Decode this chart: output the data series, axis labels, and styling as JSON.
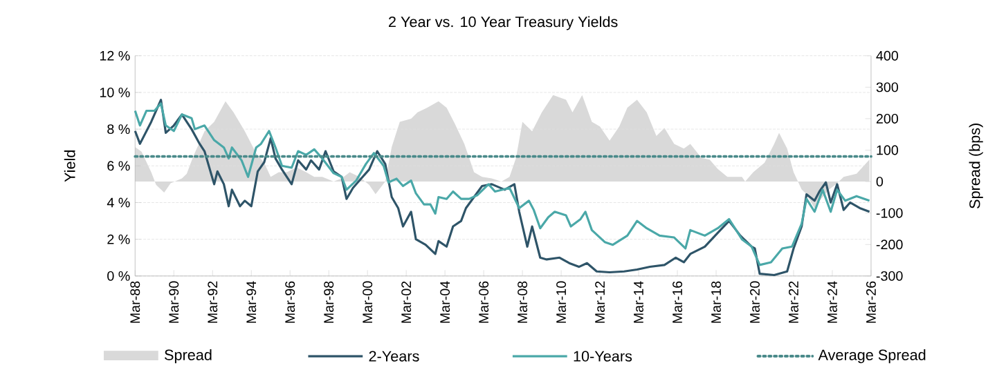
{
  "chart_data": {
    "type": "line",
    "title": "2 Year vs. 10 Year Treasury Yields",
    "ylabel": "Yield",
    "y2label": "Spread (bps)",
    "xlim": [
      "1988-03",
      "2026-03"
    ],
    "xticks": [
      {
        "value": "1988-03",
        "label": "Mar-88"
      },
      {
        "value": "1990-03",
        "label": "Mar-90"
      },
      {
        "value": "1992-03",
        "label": "Mar-92"
      },
      {
        "value": "1994-03",
        "label": "Mar-94"
      },
      {
        "value": "1996-03",
        "label": "Mar-96"
      },
      {
        "value": "1998-03",
        "label": "Mar-98"
      },
      {
        "value": "2000-03",
        "label": "Mar-00"
      },
      {
        "value": "2002-03",
        "label": "Mar-02"
      },
      {
        "value": "2004-03",
        "label": "Mar-04"
      },
      {
        "value": "2006-03",
        "label": "Mar-06"
      },
      {
        "value": "2008-03",
        "label": "Mar-08"
      },
      {
        "value": "2010-03",
        "label": "Mar-10"
      },
      {
        "value": "2012-03",
        "label": "Mar-12"
      },
      {
        "value": "2014-03",
        "label": "Mar-14"
      },
      {
        "value": "2016-03",
        "label": "Mar-16"
      },
      {
        "value": "2018-03",
        "label": "Mar-18"
      },
      {
        "value": "2020-03",
        "label": "Mar-20"
      },
      {
        "value": "2022-03",
        "label": "Mar-22"
      },
      {
        "value": "2024-03",
        "label": "Mar-24"
      },
      {
        "value": "2026-03",
        "label": "Mar-26"
      }
    ],
    "ylim": [
      0,
      12
    ],
    "yticks": [
      {
        "value": 0,
        "label": "0 %"
      },
      {
        "value": 2,
        "label": "2 %"
      },
      {
        "value": 4,
        "label": "4 %"
      },
      {
        "value": 6,
        "label": "6 %"
      },
      {
        "value": 8,
        "label": "8 %"
      },
      {
        "value": 10,
        "label": "10 %"
      },
      {
        "value": 12,
        "label": "12 %"
      }
    ],
    "y2lim": [
      -300,
      400
    ],
    "y2ticks": [
      -300,
      -200,
      -100,
      0,
      100,
      200,
      300,
      400
    ],
    "grid": "y",
    "legend": "bottom",
    "series": [
      {
        "name": "Spread",
        "type": "area",
        "axis": "y2",
        "color": "#d9d9d9",
        "x": [
          "1988-03",
          "1988-07",
          "1989-01",
          "1989-04",
          "1989-09",
          "1990-01",
          "1990-08",
          "1990-11",
          "1991-03",
          "1991-10",
          "1992-04",
          "1992-11",
          "1993-04",
          "1993-11",
          "1994-06",
          "1994-11",
          "1995-03",
          "1995-08",
          "1996-01",
          "1996-07",
          "1997-01",
          "1997-06",
          "1997-11",
          "1998-06",
          "1998-11",
          "1999-04",
          "1999-10",
          "2000-04",
          "2000-08",
          "2001-02",
          "2001-06",
          "2001-11",
          "2002-06",
          "2002-10",
          "2003-04",
          "2003-11",
          "2004-04",
          "2004-09",
          "2005-03",
          "2005-09",
          "2006-02",
          "2006-08",
          "2007-02",
          "2007-07",
          "2007-11",
          "2008-03",
          "2008-09",
          "2009-03",
          "2009-10",
          "2010-06",
          "2010-10",
          "2011-04",
          "2011-10",
          "2012-03",
          "2012-09",
          "2013-03",
          "2013-08",
          "2014-02",
          "2014-08",
          "2015-02",
          "2015-07",
          "2016-01",
          "2016-07",
          "2016-11",
          "2017-06",
          "2017-11",
          "2018-04",
          "2018-10",
          "2019-07",
          "2019-09",
          "2020-02",
          "2020-09",
          "2021-03",
          "2021-06",
          "2021-11",
          "2022-03",
          "2022-08",
          "2022-11",
          "2023-04",
          "2023-08",
          "2024-01",
          "2024-06",
          "2024-10",
          "2025-06",
          "2026-02"
        ],
        "values": [
          110,
          95,
          30,
          -10,
          -35,
          -5,
          10,
          25,
          80,
          160,
          190,
          255,
          220,
          160,
          90,
          60,
          15,
          30,
          30,
          45,
          30,
          15,
          15,
          0,
          10,
          30,
          15,
          -10,
          -40,
          0,
          110,
          190,
          200,
          220,
          235,
          255,
          235,
          185,
          120,
          30,
          15,
          10,
          0,
          15,
          75,
          190,
          160,
          220,
          275,
          260,
          220,
          275,
          190,
          175,
          130,
          175,
          235,
          260,
          220,
          145,
          170,
          120,
          105,
          120,
          75,
          70,
          40,
          15,
          15,
          0,
          30,
          60,
          120,
          155,
          105,
          30,
          -25,
          -40,
          -85,
          -55,
          -25,
          -5,
          15,
          25,
          70
        ]
      },
      {
        "name": "2-Years",
        "color": "#2e5468",
        "x": [
          "1988-03",
          "1988-06",
          "1989-01",
          "1989-07",
          "1989-10",
          "1990-03",
          "1990-08",
          "1991-02",
          "1991-07",
          "1991-10",
          "1992-04",
          "1992-06",
          "1992-10",
          "1993-01",
          "1993-03",
          "1993-08",
          "1993-11",
          "1994-03",
          "1994-07",
          "1994-11",
          "1995-03",
          "1995-06",
          "1995-10",
          "1996-04",
          "1996-08",
          "1997-01",
          "1997-04",
          "1997-09",
          "1998-01",
          "1998-06",
          "1998-11",
          "1999-02",
          "1999-06",
          "1999-10",
          "2000-04",
          "2000-07",
          "2000-09",
          "2001-02",
          "2001-06",
          "2001-10",
          "2002-01",
          "2002-06",
          "2002-09",
          "2003-03",
          "2003-09",
          "2003-11",
          "2004-04",
          "2004-08",
          "2005-01",
          "2005-04",
          "2005-09",
          "2006-02",
          "2006-08",
          "2007-04",
          "2007-10",
          "2008-01",
          "2008-06",
          "2008-09",
          "2009-02",
          "2009-06",
          "2010-02",
          "2010-08",
          "2011-02",
          "2011-07",
          "2012-01",
          "2012-09",
          "2013-06",
          "2014-02",
          "2014-10",
          "2015-07",
          "2016-02",
          "2016-07",
          "2016-11",
          "2017-08",
          "2018-04",
          "2018-11",
          "2019-06",
          "2020-01",
          "2020-03",
          "2020-06",
          "2021-03",
          "2021-11",
          "2022-03",
          "2022-08",
          "2022-11",
          "2023-04",
          "2023-07",
          "2023-11",
          "2024-02",
          "2024-06",
          "2024-10",
          "2025-02",
          "2025-08",
          "2026-02"
        ],
        "values": [
          7.9,
          7.2,
          8.4,
          9.6,
          7.8,
          8.2,
          8.8,
          8.0,
          7.2,
          6.8,
          5.0,
          5.7,
          5.0,
          3.8,
          4.7,
          3.8,
          4.1,
          3.8,
          5.7,
          6.2,
          7.5,
          6.4,
          5.8,
          5.0,
          6.3,
          5.8,
          6.3,
          5.8,
          6.8,
          5.7,
          5.4,
          4.2,
          4.8,
          5.2,
          5.8,
          6.4,
          6.8,
          6.1,
          4.3,
          3.7,
          2.7,
          3.5,
          2.0,
          1.7,
          1.2,
          1.9,
          1.6,
          2.7,
          3.0,
          3.7,
          4.3,
          4.9,
          5.0,
          4.7,
          5.0,
          3.5,
          1.6,
          2.7,
          1.0,
          0.9,
          1.0,
          0.7,
          0.5,
          0.7,
          0.25,
          0.2,
          0.25,
          0.35,
          0.5,
          0.6,
          1.0,
          0.75,
          1.2,
          1.6,
          2.35,
          3.0,
          2.2,
          1.6,
          1.5,
          0.12,
          0.05,
          0.25,
          1.5,
          2.7,
          4.45,
          4.1,
          4.6,
          5.1,
          4.0,
          5.0,
          3.6,
          4.0,
          3.7,
          3.5
        ]
      },
      {
        "name": "10-Years",
        "color": "#4aa8a8",
        "x": [
          "1988-03",
          "1988-06",
          "1988-10",
          "1989-03",
          "1989-07",
          "1989-10",
          "1990-03",
          "1990-08",
          "1991-02",
          "1991-04",
          "1991-10",
          "1992-04",
          "1992-10",
          "1993-01",
          "1993-03",
          "1993-09",
          "1994-01",
          "1994-06",
          "1994-09",
          "1995-02",
          "1995-06",
          "1995-10",
          "1996-04",
          "1996-08",
          "1997-01",
          "1997-06",
          "1997-11",
          "1998-06",
          "1998-11",
          "1999-02",
          "1999-08",
          "2000-02",
          "2000-07",
          "2001-01",
          "2001-04",
          "2001-09",
          "2002-01",
          "2002-06",
          "2002-09",
          "2003-02",
          "2003-06",
          "2003-09",
          "2003-11",
          "2004-04",
          "2004-08",
          "2005-01",
          "2005-06",
          "2005-11",
          "2006-06",
          "2006-10",
          "2007-07",
          "2008-01",
          "2008-07",
          "2008-10",
          "2009-02",
          "2009-07",
          "2009-11",
          "2010-06",
          "2010-09",
          "2011-03",
          "2011-06",
          "2011-10",
          "2012-06",
          "2012-11",
          "2013-08",
          "2014-02",
          "2014-08",
          "2015-04",
          "2016-01",
          "2016-08",
          "2016-11",
          "2017-08",
          "2018-04",
          "2018-11",
          "2019-07",
          "2020-01",
          "2020-06",
          "2021-01",
          "2021-08",
          "2022-02",
          "2022-08",
          "2022-11",
          "2023-04",
          "2023-09",
          "2024-02",
          "2024-06",
          "2024-11",
          "2025-06",
          "2026-02"
        ],
        "values": [
          9.0,
          8.2,
          9.0,
          9.0,
          9.4,
          8.2,
          7.9,
          8.8,
          8.6,
          8.0,
          8.2,
          7.4,
          7.0,
          6.4,
          7.0,
          6.3,
          5.4,
          7.0,
          7.2,
          7.9,
          7.0,
          6.0,
          5.9,
          6.8,
          6.6,
          6.9,
          6.4,
          5.6,
          5.4,
          4.7,
          5.2,
          6.1,
          6.7,
          6.0,
          5.1,
          5.3,
          4.9,
          5.2,
          4.5,
          3.9,
          3.9,
          3.4,
          4.3,
          4.2,
          4.6,
          4.2,
          4.2,
          4.4,
          5.0,
          4.6,
          4.8,
          3.7,
          4.1,
          3.6,
          2.6,
          3.2,
          3.5,
          3.3,
          2.7,
          3.1,
          3.5,
          2.5,
          1.85,
          1.7,
          2.2,
          3.0,
          2.6,
          2.2,
          2.1,
          1.5,
          2.5,
          2.2,
          2.6,
          3.1,
          2.0,
          1.6,
          0.6,
          0.75,
          1.5,
          1.6,
          2.85,
          4.2,
          3.5,
          4.7,
          3.5,
          4.7,
          4.1,
          4.35,
          4.1
        ]
      },
      {
        "name": "Average Spread",
        "axis": "y2",
        "line_style": "dotted",
        "color": "#4a8a8a",
        "x": [
          "1988-03",
          "2026-03"
        ],
        "values": [
          80,
          80
        ]
      }
    ]
  }
}
